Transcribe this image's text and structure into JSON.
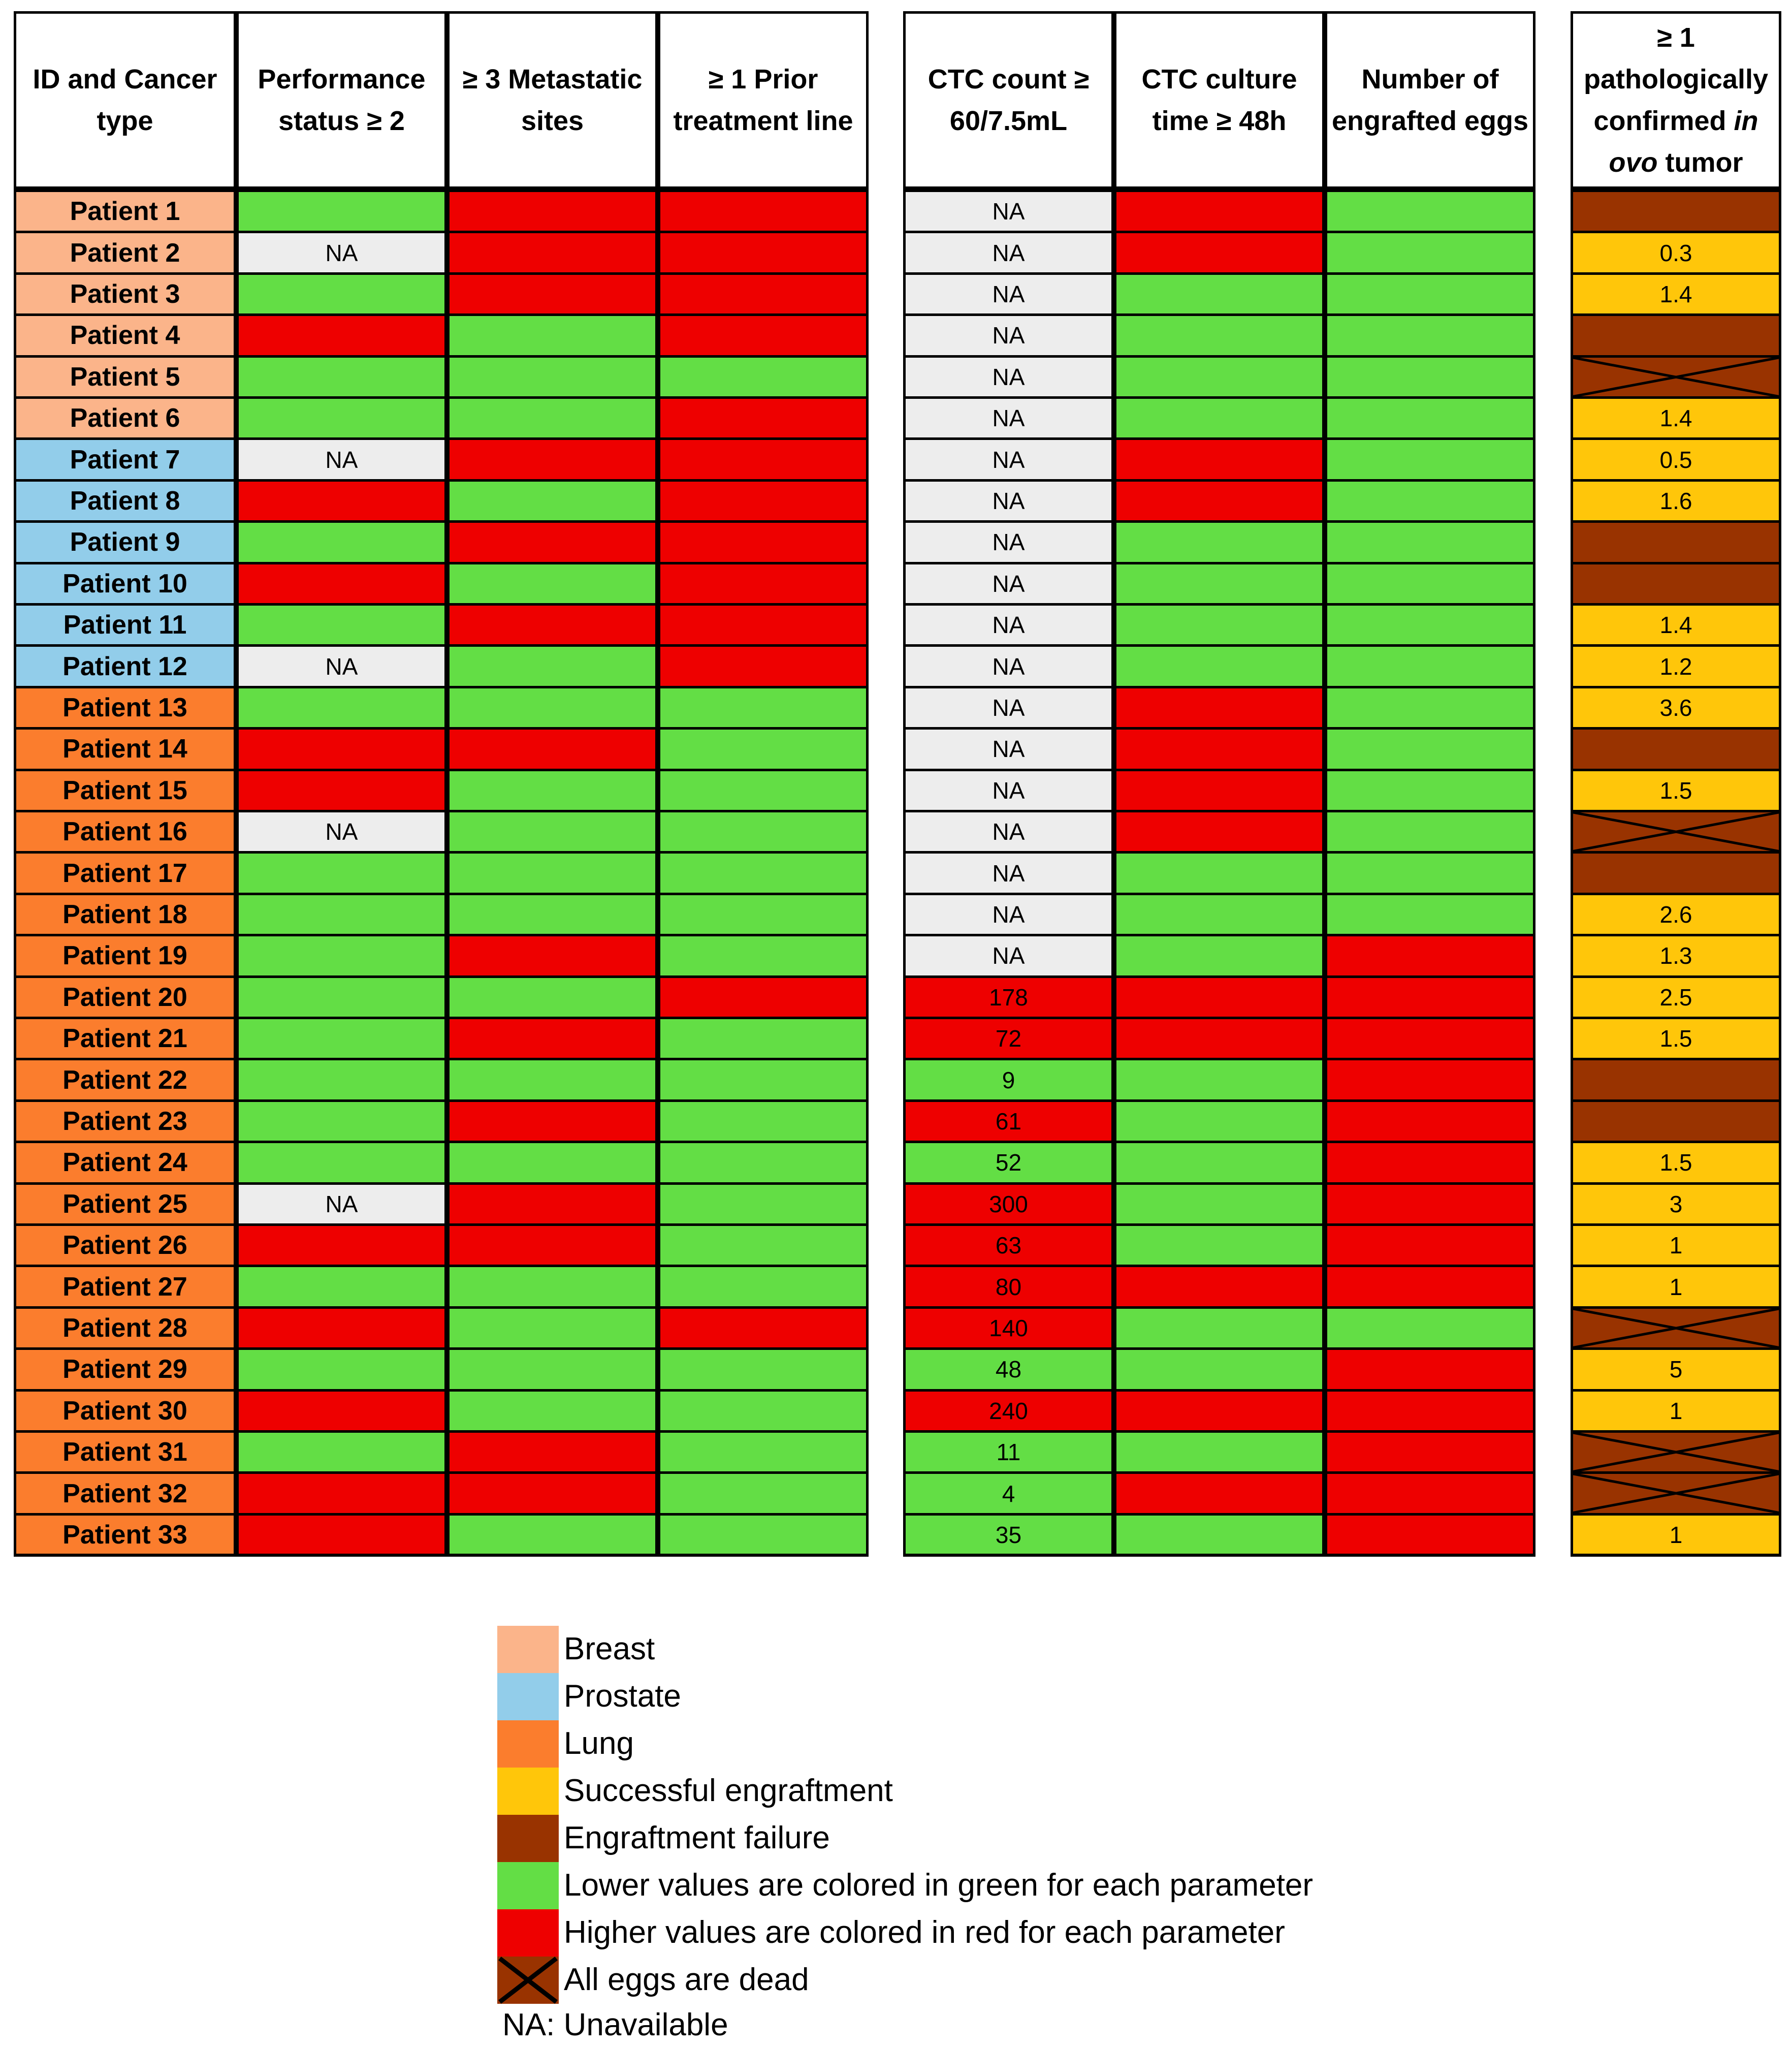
{
  "chart_data": {
    "type": "table",
    "columns": [
      {
        "key": "id",
        "label": [
          "ID and Cancer",
          "type"
        ]
      },
      {
        "key": "ps",
        "label": [
          "Performance",
          "status ≥ 2"
        ]
      },
      {
        "key": "meta",
        "label": [
          "≥ 3 Metastatic",
          "sites"
        ]
      },
      {
        "key": "prior",
        "label": [
          "≥ 1 Prior",
          "treatment line"
        ]
      },
      {
        "key": "ctc",
        "label": [
          "CTC count ≥",
          "60/7.5mL"
        ]
      },
      {
        "key": "culture",
        "label": [
          "CTC culture",
          "time ≥ 48h"
        ]
      },
      {
        "key": "eggs",
        "label": [
          "Number of",
          "engrafted eggs"
        ]
      },
      {
        "key": "tumor",
        "label": [
          "≥ 1",
          "pathologically",
          "confirmed |in|",
          "|ovo| tumor"
        ]
      }
    ],
    "colors": {
      "Breast": "#FBB48A",
      "Prostate": "#92CDEA",
      "Lung": "#FB7D2D",
      "green": "#63DE45",
      "red": "#EE0000",
      "na": "#EDEDED",
      "success": "#FFC60A",
      "failure": "#993300"
    },
    "rows": [
      {
        "id": "Patient 1",
        "type": "Breast",
        "ps": "green",
        "meta": "red",
        "prior": "red",
        "ctc": [
          "na",
          "NA"
        ],
        "culture": "red",
        "eggs": "green",
        "tumor": [
          "failure",
          ""
        ]
      },
      {
        "id": "Patient 2",
        "type": "Breast",
        "ps": "NA",
        "meta": "red",
        "prior": "red",
        "ctc": [
          "na",
          "NA"
        ],
        "culture": "red",
        "eggs": "green",
        "tumor": [
          "success",
          "0.3"
        ]
      },
      {
        "id": "Patient 3",
        "type": "Breast",
        "ps": "green",
        "meta": "red",
        "prior": "red",
        "ctc": [
          "na",
          "NA"
        ],
        "culture": "green",
        "eggs": "green",
        "tumor": [
          "success",
          "1.4"
        ]
      },
      {
        "id": "Patient 4",
        "type": "Breast",
        "ps": "red",
        "meta": "green",
        "prior": "red",
        "ctc": [
          "na",
          "NA"
        ],
        "culture": "green",
        "eggs": "green",
        "tumor": [
          "failure",
          ""
        ]
      },
      {
        "id": "Patient 5",
        "type": "Breast",
        "ps": "green",
        "meta": "green",
        "prior": "green",
        "ctc": [
          "na",
          "NA"
        ],
        "culture": "green",
        "eggs": "green",
        "tumor": [
          "dead",
          ""
        ]
      },
      {
        "id": "Patient 6",
        "type": "Breast",
        "ps": "green",
        "meta": "green",
        "prior": "red",
        "ctc": [
          "na",
          "NA"
        ],
        "culture": "green",
        "eggs": "green",
        "tumor": [
          "success",
          "1.4"
        ]
      },
      {
        "id": "Patient 7",
        "type": "Prostate",
        "ps": "NA",
        "meta": "red",
        "prior": "red",
        "ctc": [
          "na",
          "NA"
        ],
        "culture": "red",
        "eggs": "green",
        "tumor": [
          "success",
          "0.5"
        ]
      },
      {
        "id": "Patient 8",
        "type": "Prostate",
        "ps": "red",
        "meta": "green",
        "prior": "red",
        "ctc": [
          "na",
          "NA"
        ],
        "culture": "red",
        "eggs": "green",
        "tumor": [
          "success",
          "1.6"
        ]
      },
      {
        "id": "Patient 9",
        "type": "Prostate",
        "ps": "green",
        "meta": "red",
        "prior": "red",
        "ctc": [
          "na",
          "NA"
        ],
        "culture": "green",
        "eggs": "green",
        "tumor": [
          "failure",
          ""
        ]
      },
      {
        "id": "Patient 10",
        "type": "Prostate",
        "ps": "red",
        "meta": "green",
        "prior": "red",
        "ctc": [
          "na",
          "NA"
        ],
        "culture": "green",
        "eggs": "green",
        "tumor": [
          "failure",
          ""
        ]
      },
      {
        "id": "Patient 11",
        "type": "Prostate",
        "ps": "green",
        "meta": "red",
        "prior": "red",
        "ctc": [
          "na",
          "NA"
        ],
        "culture": "green",
        "eggs": "green",
        "tumor": [
          "success",
          "1.4"
        ]
      },
      {
        "id": "Patient 12",
        "type": "Prostate",
        "ps": "NA",
        "meta": "green",
        "prior": "red",
        "ctc": [
          "na",
          "NA"
        ],
        "culture": "green",
        "eggs": "green",
        "tumor": [
          "success",
          "1.2"
        ]
      },
      {
        "id": "Patient 13",
        "type": "Lung",
        "ps": "green",
        "meta": "green",
        "prior": "green",
        "ctc": [
          "na",
          "NA"
        ],
        "culture": "red",
        "eggs": "green",
        "tumor": [
          "success",
          "3.6"
        ]
      },
      {
        "id": "Patient 14",
        "type": "Lung",
        "ps": "red",
        "meta": "red",
        "prior": "green",
        "ctc": [
          "na",
          "NA"
        ],
        "culture": "red",
        "eggs": "green",
        "tumor": [
          "failure",
          ""
        ]
      },
      {
        "id": "Patient 15",
        "type": "Lung",
        "ps": "red",
        "meta": "green",
        "prior": "green",
        "ctc": [
          "na",
          "NA"
        ],
        "culture": "red",
        "eggs": "green",
        "tumor": [
          "success",
          "1.5"
        ]
      },
      {
        "id": "Patient 16",
        "type": "Lung",
        "ps": "NA",
        "meta": "green",
        "prior": "green",
        "ctc": [
          "na",
          "NA"
        ],
        "culture": "red",
        "eggs": "green",
        "tumor": [
          "dead",
          ""
        ]
      },
      {
        "id": "Patient 17",
        "type": "Lung",
        "ps": "green",
        "meta": "green",
        "prior": "green",
        "ctc": [
          "na",
          "NA"
        ],
        "culture": "green",
        "eggs": "green",
        "tumor": [
          "failure",
          ""
        ]
      },
      {
        "id": "Patient 18",
        "type": "Lung",
        "ps": "green",
        "meta": "green",
        "prior": "green",
        "ctc": [
          "na",
          "NA"
        ],
        "culture": "green",
        "eggs": "green",
        "tumor": [
          "success",
          "2.6"
        ]
      },
      {
        "id": "Patient 19",
        "type": "Lung",
        "ps": "green",
        "meta": "red",
        "prior": "green",
        "ctc": [
          "na",
          "NA"
        ],
        "culture": "green",
        "eggs": "red",
        "tumor": [
          "success",
          "1.3"
        ]
      },
      {
        "id": "Patient 20",
        "type": "Lung",
        "ps": "green",
        "meta": "green",
        "prior": "red",
        "ctc": [
          "red",
          "178"
        ],
        "culture": "red",
        "eggs": "red",
        "tumor": [
          "success",
          "2.5"
        ]
      },
      {
        "id": "Patient 21",
        "type": "Lung",
        "ps": "green",
        "meta": "red",
        "prior": "green",
        "ctc": [
          "red",
          "72"
        ],
        "culture": "red",
        "eggs": "red",
        "tumor": [
          "success",
          "1.5"
        ]
      },
      {
        "id": "Patient 22",
        "type": "Lung",
        "ps": "green",
        "meta": "green",
        "prior": "green",
        "ctc": [
          "green",
          "9"
        ],
        "culture": "green",
        "eggs": "red",
        "tumor": [
          "failure",
          ""
        ]
      },
      {
        "id": "Patient 23",
        "type": "Lung",
        "ps": "green",
        "meta": "red",
        "prior": "green",
        "ctc": [
          "red",
          "61"
        ],
        "culture": "green",
        "eggs": "red",
        "tumor": [
          "failure",
          ""
        ]
      },
      {
        "id": "Patient 24",
        "type": "Lung",
        "ps": "green",
        "meta": "green",
        "prior": "green",
        "ctc": [
          "green",
          "52"
        ],
        "culture": "green",
        "eggs": "red",
        "tumor": [
          "success",
          "1.5"
        ]
      },
      {
        "id": "Patient 25",
        "type": "Lung",
        "ps": "NA",
        "meta": "red",
        "prior": "green",
        "ctc": [
          "red",
          "300"
        ],
        "culture": "green",
        "eggs": "red",
        "tumor": [
          "success",
          "3"
        ]
      },
      {
        "id": "Patient 26",
        "type": "Lung",
        "ps": "red",
        "meta": "red",
        "prior": "green",
        "ctc": [
          "red",
          "63"
        ],
        "culture": "green",
        "eggs": "red",
        "tumor": [
          "success",
          "1"
        ]
      },
      {
        "id": "Patient 27",
        "type": "Lung",
        "ps": "green",
        "meta": "green",
        "prior": "green",
        "ctc": [
          "red",
          "80"
        ],
        "culture": "red",
        "eggs": "red",
        "tumor": [
          "success",
          "1"
        ]
      },
      {
        "id": "Patient 28",
        "type": "Lung",
        "ps": "red",
        "meta": "green",
        "prior": "red",
        "ctc": [
          "red",
          "140"
        ],
        "culture": "green",
        "eggs": "green",
        "tumor": [
          "dead",
          ""
        ]
      },
      {
        "id": "Patient 29",
        "type": "Lung",
        "ps": "green",
        "meta": "green",
        "prior": "green",
        "ctc": [
          "green",
          "48"
        ],
        "culture": "green",
        "eggs": "red",
        "tumor": [
          "success",
          "5"
        ]
      },
      {
        "id": "Patient 30",
        "type": "Lung",
        "ps": "red",
        "meta": "green",
        "prior": "green",
        "ctc": [
          "red",
          "240"
        ],
        "culture": "red",
        "eggs": "red",
        "tumor": [
          "success",
          "1"
        ]
      },
      {
        "id": "Patient 31",
        "type": "Lung",
        "ps": "green",
        "meta": "red",
        "prior": "green",
        "ctc": [
          "green",
          "11"
        ],
        "culture": "green",
        "eggs": "red",
        "tumor": [
          "dead",
          ""
        ]
      },
      {
        "id": "Patient 32",
        "type": "Lung",
        "ps": "red",
        "meta": "red",
        "prior": "green",
        "ctc": [
          "green",
          "4"
        ],
        "culture": "red",
        "eggs": "red",
        "tumor": [
          "dead",
          ""
        ]
      },
      {
        "id": "Patient 33",
        "type": "Lung",
        "ps": "red",
        "meta": "green",
        "prior": "green",
        "ctc": [
          "green",
          "35"
        ],
        "culture": "green",
        "eggs": "red",
        "tumor": [
          "success",
          "1"
        ]
      }
    ],
    "legend": [
      {
        "swatch": "Breast",
        "label": "Breast"
      },
      {
        "swatch": "Prostate",
        "label": "Prostate"
      },
      {
        "swatch": "Lung",
        "label": "Lung"
      },
      {
        "swatch": "success",
        "label": "Successful engraftment"
      },
      {
        "swatch": "failure",
        "label": "Engraftment failure"
      },
      {
        "swatch": "green",
        "label": "Lower values are colored in green for each parameter"
      },
      {
        "swatch": "red",
        "label": "Higher values are colored in red for each parameter"
      },
      {
        "swatch": "dead",
        "label": "All eggs are dead"
      }
    ],
    "footnote": "NA: Unavailable"
  }
}
